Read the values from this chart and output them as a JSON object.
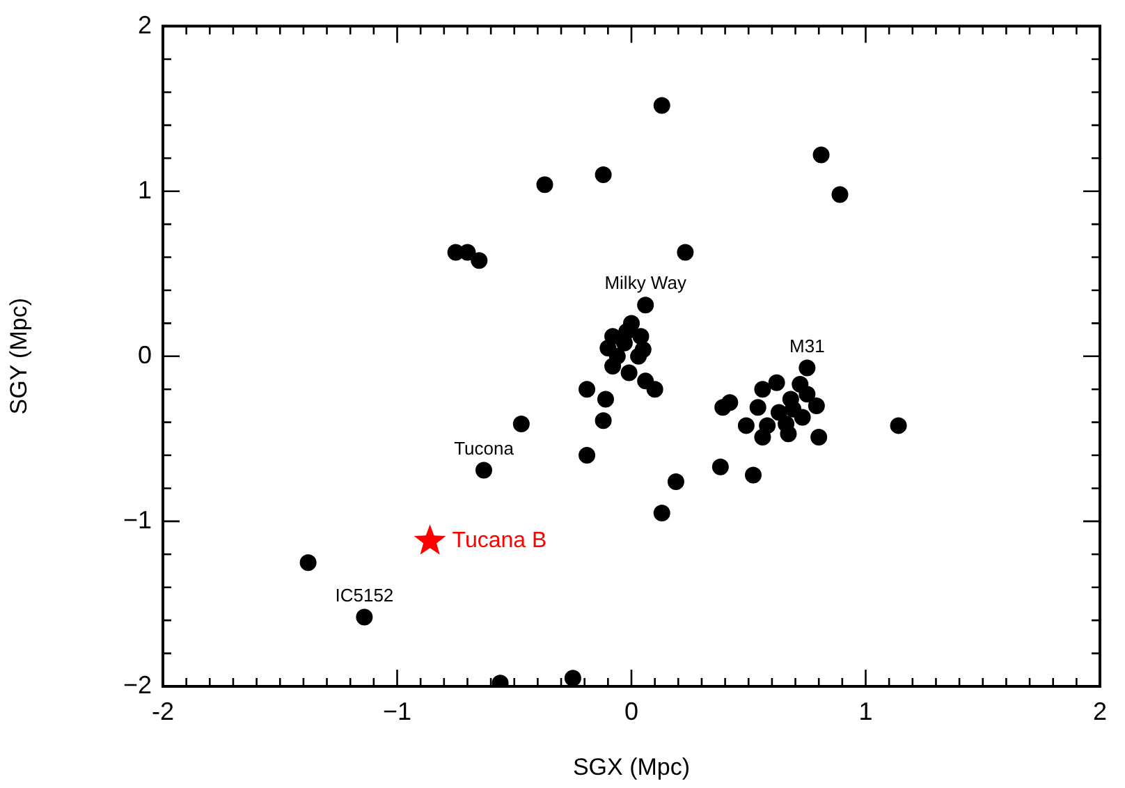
{
  "chart_data": {
    "type": "scatter",
    "xlabel": "SGX (Mpc)",
    "ylabel": "SGY (Mpc)",
    "xlim": [
      -2,
      2
    ],
    "ylim": [
      -2,
      2
    ],
    "xticks": [
      -2,
      {
        "value": -1.9,
        "label": null
      },
      {
        "value": -1.8,
        "label": null
      },
      {
        "value": -1.7,
        "label": null
      },
      {
        "value": -1.6,
        "label": null
      },
      {
        "value": -1.5,
        "label": null
      },
      {
        "value": -1.4,
        "label": null
      },
      {
        "value": -1.3,
        "label": null
      },
      {
        "value": -1.2,
        "label": null
      },
      {
        "value": -1.1,
        "label": null
      },
      {
        "value": -1,
        "label": "−1"
      },
      {
        "value": -0.9,
        "label": null
      },
      {
        "value": -0.8,
        "label": null
      },
      {
        "value": -0.7,
        "label": null
      },
      {
        "value": -0.6,
        "label": null
      },
      {
        "value": -0.5,
        "label": null
      },
      {
        "value": -0.4,
        "label": null
      },
      {
        "value": -0.3,
        "label": null
      },
      {
        "value": -0.2,
        "label": null
      },
      {
        "value": -0.1,
        "label": null
      },
      0,
      {
        "value": 0.1,
        "label": null
      },
      {
        "value": 0.2,
        "label": null
      },
      {
        "value": 0.3,
        "label": null
      },
      {
        "value": 0.4,
        "label": null
      },
      {
        "value": 0.5,
        "label": null
      },
      {
        "value": 0.6,
        "label": null
      },
      {
        "value": 0.7,
        "label": null
      },
      {
        "value": 0.8,
        "label": null
      },
      {
        "value": 0.9,
        "label": null
      },
      1,
      {
        "value": 1.1,
        "label": null
      },
      {
        "value": 1.2,
        "label": null
      },
      {
        "value": 1.3,
        "label": null
      },
      {
        "value": 1.4,
        "label": null
      },
      {
        "value": 1.5,
        "label": null
      },
      {
        "value": 1.6,
        "label": null
      },
      {
        "value": 1.7,
        "label": null
      },
      {
        "value": 1.8,
        "label": null
      },
      {
        "value": 1.9,
        "label": null
      },
      2
    ],
    "yticks": [
      {
        "value": -2,
        "label": "−2"
      },
      {
        "value": -1.8,
        "label": null
      },
      {
        "value": -1.6,
        "label": null
      },
      {
        "value": -1.4,
        "label": null
      },
      {
        "value": -1.2,
        "label": null
      },
      {
        "value": -1,
        "label": "−1"
      },
      {
        "value": -0.8,
        "label": null
      },
      {
        "value": -0.6,
        "label": null
      },
      {
        "value": -0.4,
        "label": null
      },
      {
        "value": -0.2,
        "label": null
      },
      0,
      {
        "value": 0.2,
        "label": null
      },
      {
        "value": 0.4,
        "label": null
      },
      {
        "value": 0.6,
        "label": null
      },
      {
        "value": 0.8,
        "label": null
      },
      1,
      {
        "value": 1.2,
        "label": null
      },
      {
        "value": 1.4,
        "label": null
      },
      {
        "value": 1.6,
        "label": null
      },
      {
        "value": 1.8,
        "label": null
      },
      2
    ],
    "grid": false,
    "legend": "bottom left",
    "annotations": [
      {
        "text": "Milky Way",
        "x": 0.06,
        "y": 0.31
      },
      {
        "text": "M31",
        "x": 0.75,
        "y": -0.07
      },
      {
        "text": "Tucona",
        "x": -0.63,
        "y": -0.69
      },
      {
        "text": "IC5152",
        "x": -1.14,
        "y": -1.58
      }
    ],
    "series": [
      {
        "color": "#000000",
        "marker": "circle",
        "x": [
          0.13,
          0.81,
          0.89,
          -0.12,
          -0.37,
          -0.75,
          -0.7,
          -0.65,
          0.23,
          0.06,
          0,
          -0.08,
          -0.1,
          -0.03,
          0.04,
          0.03,
          -0.01,
          -0.08,
          0.05,
          -0.02,
          -0.06,
          0.06,
          0.1,
          -0.19,
          -0.11,
          -0.12,
          -0.47,
          -0.19,
          -0.63,
          0.19,
          0.13,
          0.38,
          0.52,
          0.39,
          0.42,
          0.75,
          0.56,
          0.62,
          0.68,
          0.72,
          0.75,
          0.63,
          0.54,
          0.58,
          0.66,
          0.73,
          0.79,
          0.49,
          0.56,
          0.67,
          0.8,
          0.69,
          1.14,
          -1.38,
          -1.14,
          -0.56,
          -0.25
        ],
        "values": [
          1.52,
          1.22,
          0.98,
          1.1,
          1.04,
          0.63,
          0.63,
          0.58,
          0.63,
          0.31,
          0.2,
          0.12,
          0.05,
          0.08,
          0.12,
          0,
          -0.1,
          -0.06,
          0.04,
          0.15,
          0,
          -0.15,
          -0.2,
          -0.2,
          -0.26,
          -0.39,
          -0.41,
          -0.6,
          -0.69,
          -0.76,
          -0.95,
          -0.67,
          -0.72,
          -0.31,
          -0.28,
          -0.07,
          -0.2,
          -0.16,
          -0.26,
          -0.17,
          -0.23,
          -0.34,
          -0.31,
          -0.42,
          -0.41,
          -0.37,
          -0.3,
          -0.42,
          -0.49,
          -0.47,
          -0.49,
          -0.32,
          -0.42,
          -1.25,
          -1.58,
          -1.98,
          -1.95
        ]
      },
      {
        "name": "Tucana B",
        "color": "#ff0000",
        "marker": "star",
        "x": [
          -0.86
        ],
        "values": [
          -1.12
        ]
      }
    ]
  }
}
